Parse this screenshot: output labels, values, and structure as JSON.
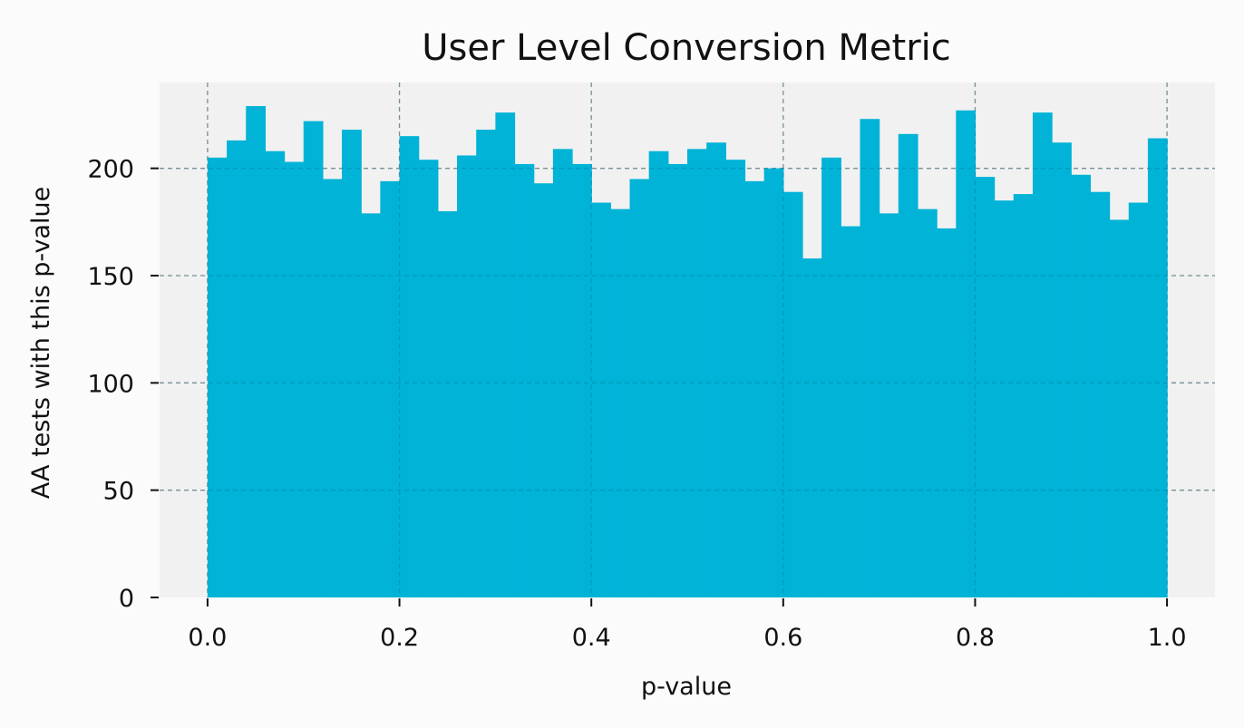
{
  "colors": {
    "page_background": "#fbfbfb",
    "plot_background": "#f1f1f1",
    "bar_fill": "#00b3d7",
    "grid": "#a5a5a5",
    "text": "#111111"
  },
  "chart_data": {
    "type": "bar",
    "subtype": "histogram",
    "title": "User Level Conversion Metric",
    "xlabel": "p-value",
    "ylabel": "AA tests with this p-value",
    "xlim": [
      -0.05,
      1.05
    ],
    "ylim": [
      0,
      240
    ],
    "xticks": [
      0.0,
      0.2,
      0.4,
      0.6,
      0.8,
      1.0
    ],
    "xtick_labels": [
      "0.0",
      "0.2",
      "0.4",
      "0.6",
      "0.8",
      "1.0"
    ],
    "yticks": [
      0,
      50,
      100,
      150,
      200
    ],
    "ytick_labels": [
      "0",
      "50",
      "100",
      "150",
      "200"
    ],
    "grid": true,
    "grid_style": "dashed",
    "legend": false,
    "bin_width": 0.02,
    "bin_edges": [
      0.0,
      0.02,
      0.04,
      0.06,
      0.08,
      0.1,
      0.12,
      0.14,
      0.16,
      0.18,
      0.2,
      0.22,
      0.24,
      0.26,
      0.28,
      0.3,
      0.32,
      0.34,
      0.36,
      0.38,
      0.4,
      0.42,
      0.44,
      0.46,
      0.48,
      0.5,
      0.52,
      0.54,
      0.56,
      0.58,
      0.6,
      0.62,
      0.64,
      0.66,
      0.68,
      0.7,
      0.72,
      0.74,
      0.76,
      0.78,
      0.8,
      0.82,
      0.84,
      0.86,
      0.88,
      0.9,
      0.92,
      0.94,
      0.96,
      0.98,
      1.0
    ],
    "values": [
      205,
      213,
      229,
      208,
      203,
      222,
      195,
      218,
      179,
      194,
      215,
      204,
      180,
      206,
      218,
      226,
      202,
      193,
      209,
      202,
      184,
      181,
      195,
      208,
      202,
      209,
      212,
      204,
      194,
      200,
      189,
      158,
      205,
      173,
      223,
      179,
      216,
      181,
      172,
      227,
      196,
      185,
      188,
      226,
      212,
      197,
      189,
      176,
      184,
      214
    ]
  }
}
